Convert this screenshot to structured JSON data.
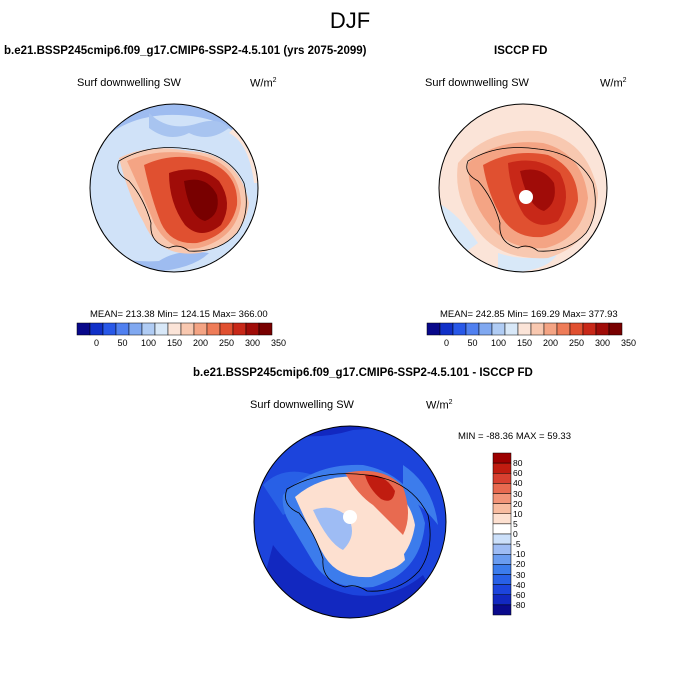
{
  "page_title": "DJF",
  "panels": [
    {
      "title": "b.e21.BSSP245cmip6.f09_g17.CMIP6-SSP2-4.5.101 (yrs 2075-2099)",
      "variable": "Surf downwelling SW",
      "units_base": "W/m",
      "units_exp": "2",
      "stats": "MEAN= 213.38  Min= 124.15  Max= 366.00"
    },
    {
      "title": "ISCCP FD",
      "variable": "Surf downwelling SW",
      "units_base": "W/m",
      "units_exp": "2",
      "stats": "MEAN= 242.85  Min= 169.29  Max= 377.93"
    },
    {
      "title": "b.e21.BSSP245cmip6.f09_g17.CMIP6-SSP2-4.5.101 - ISCCP FD",
      "variable": "Surf downwelling SW",
      "units_base": "W/m",
      "units_exp": "2",
      "stats": "MIN = -88.36 MAX =  59.33"
    }
  ],
  "colors": {
    "abs_scale": [
      "#08088a",
      "#1030c8",
      "#2858e8",
      "#5080f0",
      "#80a8f0",
      "#b0ccf4",
      "#d8e8f8",
      "#fbe4d8",
      "#f8c8b0",
      "#f4a484",
      "#ee7c58",
      "#e05030",
      "#c82818",
      "#a00c08",
      "#780000"
    ],
    "diff_scale": [
      "#0a0a8c",
      "#1228c0",
      "#1c44dc",
      "#2860e6",
      "#3c7cec",
      "#6a9cf0",
      "#9ebcf4",
      "#cce0fa",
      "#ffffff",
      "#fde0d0",
      "#f8bca0",
      "#f29478",
      "#e86a50",
      "#d84030",
      "#c01c10",
      "#9c0000"
    ]
  },
  "chart_data": [
    {
      "type": "heatmap",
      "projection": "south polar stereographic",
      "title": "b.e21.BSSP245cmip6.f09_g17.CMIP6-SSP2-4.5.101 (yrs 2075-2099)",
      "variable": "Surf downwelling SW",
      "units": "W/m2",
      "mean": 213.38,
      "min": 124.15,
      "max": 366.0,
      "colorbar_ticks": [
        "0",
        "50",
        "100",
        "150",
        "200",
        "250",
        "300",
        "350"
      ],
      "colorbar_range": [
        0,
        350
      ]
    },
    {
      "type": "heatmap",
      "projection": "south polar stereographic",
      "title": "ISCCP FD",
      "variable": "Surf downwelling SW",
      "units": "W/m2",
      "mean": 242.85,
      "min": 169.29,
      "max": 377.93,
      "colorbar_ticks": [
        "0",
        "50",
        "100",
        "150",
        "200",
        "250",
        "300",
        "350"
      ],
      "colorbar_range": [
        0,
        350
      ]
    },
    {
      "type": "heatmap",
      "projection": "south polar stereographic",
      "title": "b.e21.BSSP245cmip6.f09_g17.CMIP6-SSP2-4.5.101 - ISCCP FD",
      "variable": "Surf downwelling SW",
      "units": "W/m2",
      "min": -88.36,
      "max": 59.33,
      "colorbar_ticks": [
        "80",
        "60",
        "40",
        "30",
        "20",
        "10",
        "5",
        "0",
        "-5",
        "-10",
        "-20",
        "-30",
        "-40",
        "-60",
        "-80"
      ],
      "colorbar_levels": [
        -80,
        -60,
        -40,
        -30,
        -20,
        -10,
        -5,
        0,
        5,
        10,
        20,
        30,
        40,
        60,
        80
      ]
    }
  ]
}
